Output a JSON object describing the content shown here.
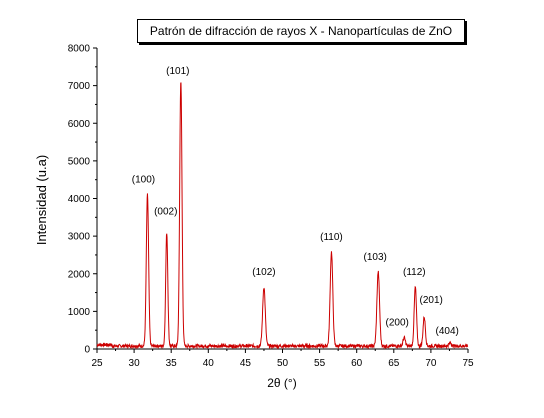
{
  "chart_data": {
    "type": "line",
    "title": "Patrón de difracción de rayos X - Nanopartículas de ZnO",
    "xlabel": "2θ (°)",
    "ylabel": "Intensidad (u.a)",
    "xlim": [
      25,
      75
    ],
    "ylim": [
      0,
      8000
    ],
    "x_ticks": [
      "25",
      "30",
      "35",
      "40",
      "45",
      "50",
      "55",
      "60",
      "65",
      "70",
      "75"
    ],
    "y_ticks": [
      "0",
      "1000",
      "2000",
      "3000",
      "4000",
      "5000",
      "6000",
      "7000",
      "8000"
    ],
    "grid": false,
    "series_color": "#cc0000",
    "baseline": 80,
    "peaks": [
      {
        "label": "(100)",
        "x": 31.8,
        "y": 4100
      },
      {
        "label": "(002)",
        "x": 34.4,
        "y": 3100
      },
      {
        "label": "(101)",
        "x": 36.3,
        "y": 7150
      },
      {
        "label": "(102)",
        "x": 47.5,
        "y": 1650
      },
      {
        "label": "(110)",
        "x": 56.6,
        "y": 2580
      },
      {
        "label": "(103)",
        "x": 62.9,
        "y": 2050
      },
      {
        "label": "(200)",
        "x": 66.4,
        "y": 300
      },
      {
        "label": "(112)",
        "x": 67.9,
        "y": 1650
      },
      {
        "label": "(201)",
        "x": 69.1,
        "y": 850
      },
      {
        "label": "(404)",
        "x": 72.6,
        "y": 160
      }
    ]
  }
}
